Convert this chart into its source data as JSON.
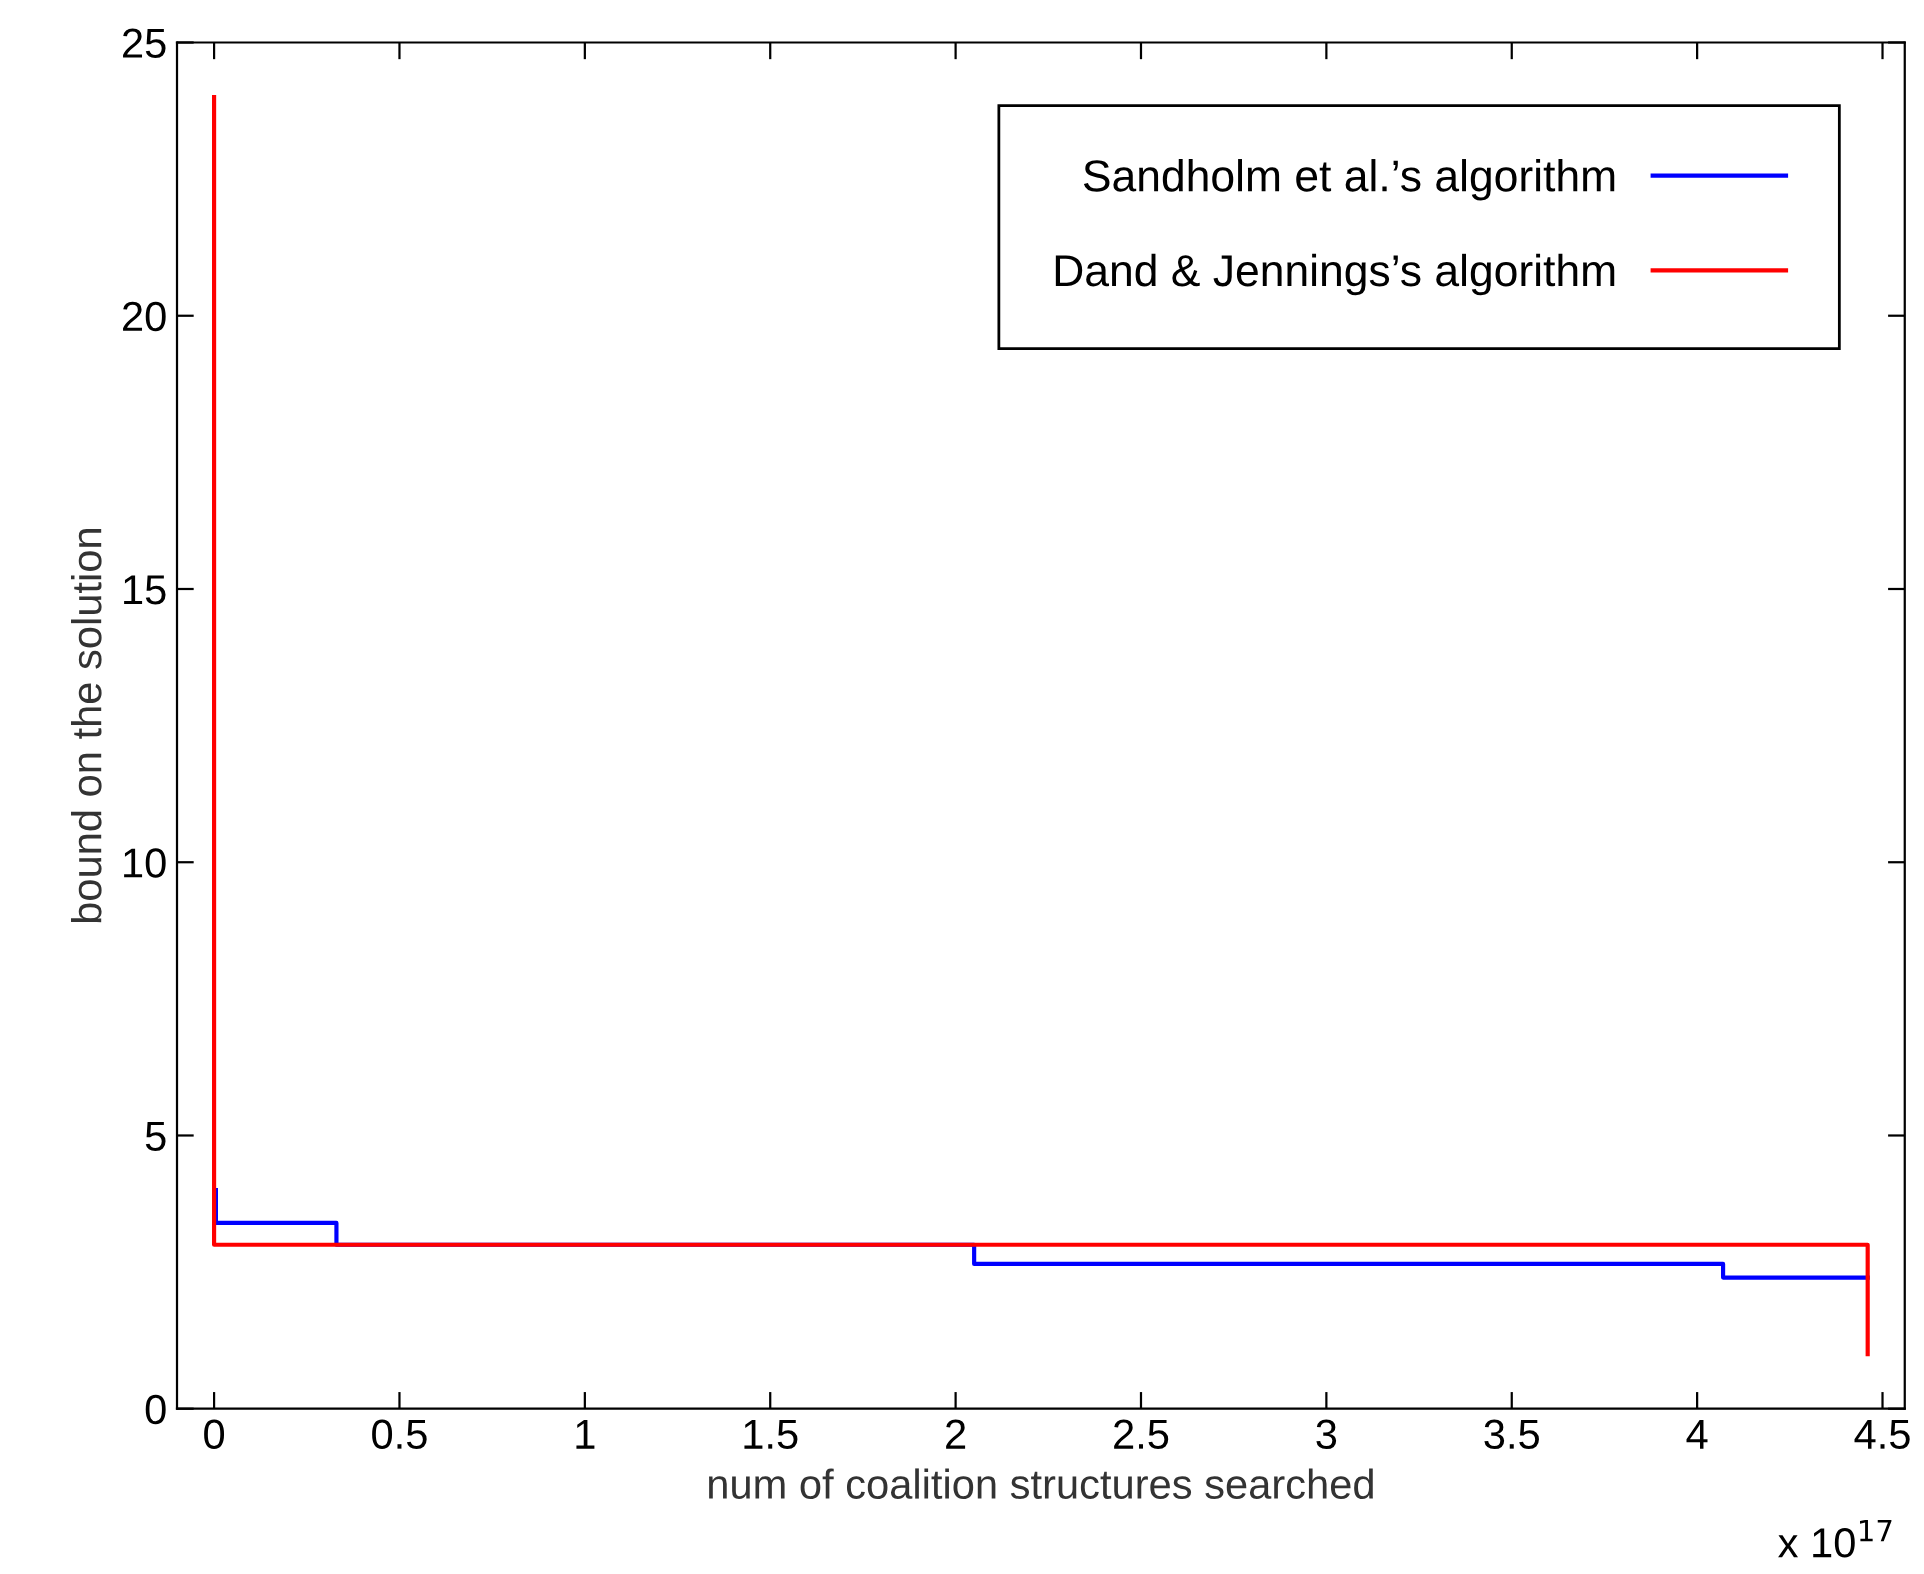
{
  "chart_data": {
    "type": "step",
    "xlabel": "num of coalition structures searched",
    "ylabel": "bound on the solution",
    "series": [
      {
        "name": "Sandholm et al.’s algorithm",
        "color": "#0000ff",
        "x": [
          0.005,
          0.005,
          0.33,
          2.05,
          4.07,
          4.46
        ],
        "values": [
          4,
          3.4,
          3,
          2.65,
          2.4,
          2.4
        ]
      },
      {
        "name": "Dand & Jennings’s algorithm",
        "color": "#ff0000",
        "x": [
          0,
          0,
          4.46,
          4.46
        ],
        "values": [
          24,
          3,
          3,
          1
        ]
      }
    ],
    "xlim": [
      -0.1,
      4.56
    ],
    "xticks": [
      0,
      0.5,
      1,
      1.5,
      2,
      2.5,
      3,
      3.5,
      4,
      4.5
    ],
    "ylim": [
      0,
      25
    ],
    "yticks": [
      0,
      5,
      10,
      15,
      20,
      25
    ],
    "annotations": [
      "x 10$^{17}$"
    ],
    "legend": "top right",
    "grid": false
  }
}
